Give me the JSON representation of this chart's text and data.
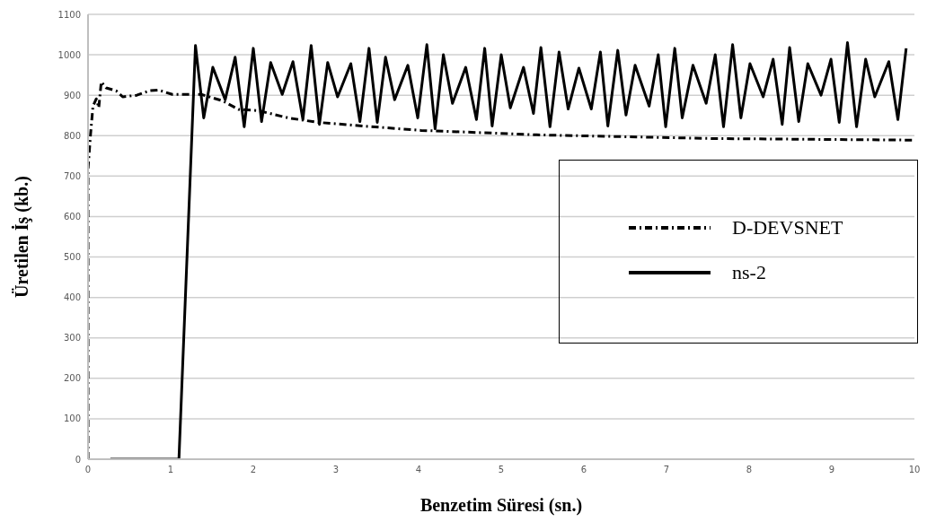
{
  "chart_data": {
    "type": "line",
    "xlabel": "Benzetim Süresi (sn.)",
    "ylabel": "Üretilen İş (kb.)",
    "xlim": [
      0,
      10
    ],
    "xticks": [
      0,
      1,
      2,
      3,
      4,
      5,
      6,
      7,
      8,
      9,
      10
    ],
    "ylim": [
      0,
      1100
    ],
    "yticks": [
      0,
      100,
      200,
      300,
      400,
      500,
      600,
      700,
      800,
      900,
      1000,
      1100
    ],
    "grid": "y",
    "legend": "right",
    "marker": "none",
    "series": [
      {
        "name": "D-DEVSNET",
        "color": "#000000",
        "line_style": "dashed",
        "x": [
          0,
          0,
          0.03,
          0.06,
          0.1,
          0.13,
          0.16,
          0.22,
          0.34,
          0.42,
          0.59,
          0.74,
          0.85,
          1.02,
          1.23,
          1.37,
          1.63,
          1.82,
          2.06,
          2.42,
          2.78,
          3.32,
          4.03,
          4.57,
          5.43,
          7.55,
          9.99
        ],
        "values": [
          0,
          718,
          802,
          873,
          891,
          869,
          933,
          918,
          911,
          896,
          900,
          911,
          913,
          902,
          902,
          902,
          886,
          865,
          862,
          844,
          833,
          824,
          813,
          809,
          802,
          793,
          789
        ]
      },
      {
        "name": "ns-2",
        "color": "#000000",
        "line_style": "solid",
        "x": [
          0.27,
          1.1,
          1.3,
          1.4,
          1.51,
          1.66,
          1.78,
          1.89,
          2.0,
          2.1,
          2.21,
          2.35,
          2.48,
          2.6,
          2.7,
          2.8,
          2.9,
          3.02,
          3.18,
          3.29,
          3.4,
          3.5,
          3.6,
          3.71,
          3.87,
          3.99,
          4.1,
          4.2,
          4.3,
          4.41,
          4.57,
          4.7,
          4.8,
          4.89,
          5.0,
          5.11,
          5.27,
          5.39,
          5.48,
          5.59,
          5.7,
          5.81,
          5.94,
          6.09,
          6.2,
          6.29,
          6.41,
          6.51,
          6.62,
          6.79,
          6.9,
          6.99,
          7.1,
          7.19,
          7.32,
          7.48,
          7.59,
          7.69,
          7.8,
          7.9,
          8.01,
          8.17,
          8.29,
          8.4,
          8.49,
          8.6,
          8.71,
          8.87,
          8.99,
          9.09,
          9.19,
          9.3,
          9.41,
          9.52,
          9.69,
          9.8,
          9.9
        ],
        "values": [
          0,
          0,
          1023,
          844,
          969,
          889,
          994,
          822,
          1016,
          835,
          981,
          902,
          983,
          840,
          1023,
          828,
          981,
          896,
          978,
          835,
          1016,
          833,
          994,
          889,
          974,
          844,
          1025,
          817,
          1000,
          880,
          969,
          840,
          1016,
          824,
          1000,
          869,
          969,
          855,
          1018,
          822,
          1007,
          866,
          967,
          866,
          1007,
          824,
          1011,
          851,
          974,
          873,
          1000,
          822,
          1016,
          844,
          974,
          880,
          1000,
          822,
          1025,
          844,
          978,
          896,
          989,
          828,
          1018,
          835,
          978,
          900,
          989,
          833,
          1030,
          822,
          989,
          896,
          983,
          840,
          1016
        ]
      }
    ]
  }
}
